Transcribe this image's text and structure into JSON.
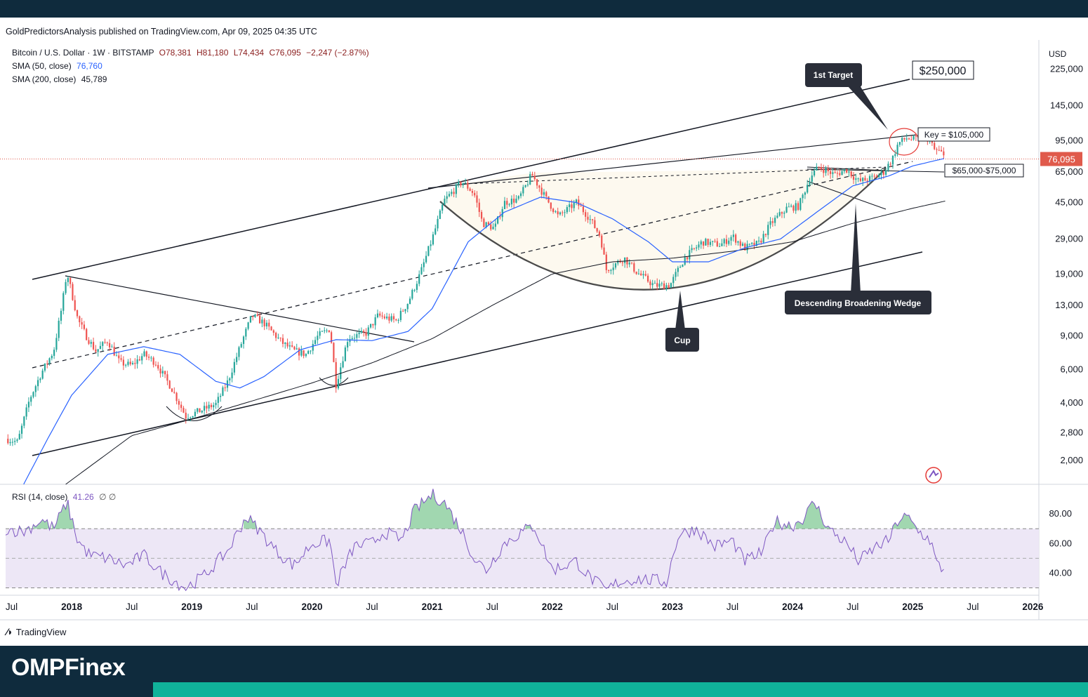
{
  "header": {
    "published_line": "GoldPredictorsAnalysis published on TradingView.com, Apr 09, 2025 04:35 UTC"
  },
  "legend": {
    "symbol_line": "Bitcoin / U.S. Dollar · 1W · BITSTAMP",
    "ohlc": {
      "o": "O78,381",
      "h": "H81,180",
      "l": "L74,434",
      "c": "C76,095",
      "chg": "−2,247 (−2.87%)"
    },
    "sma50_label": "SMA (50, close)",
    "sma50_value": "76,760",
    "sma200_label": "SMA (200, close)",
    "sma200_value": "45,789",
    "rsi_label": "RSI (14, close)",
    "rsi_value": "41.26",
    "rsi_extra": "∅  ∅"
  },
  "price_axis": {
    "currency": "USD",
    "last_price": "76,095",
    "last_price_color": "#e05a4b"
  },
  "annotations": {
    "first_target": "1st Target",
    "target_value": "$250,000",
    "key_level": "Key = $105,000",
    "support_zone": "$65,000-$75,000",
    "wedge": "Descending Broadening Wedge",
    "cup": "Cup"
  },
  "branding": {
    "tradingview": "TradingView",
    "omp_a": "OMPF",
    "omp_b": "inex"
  },
  "colors": {
    "up": "#26a69a",
    "down": "#ef5350",
    "sma50": "#2962ff",
    "sma200": "#131722",
    "rsi": "#7e57c2",
    "rsi_band": "#ede7f6",
    "brand_bg": "#0f2b3d",
    "brand_accent": "#10b29a"
  },
  "chart_data": {
    "type": "candlestick",
    "scale": "log",
    "timeframe": "1W",
    "ylim": [
      1500,
      320000
    ],
    "price_ticks": [
      2000,
      2800,
      4000,
      6000,
      9000,
      13000,
      19000,
      29000,
      45000,
      65000,
      95000,
      145000,
      225000
    ],
    "x_ticks": [
      "Jul",
      "2018",
      "Jul",
      "2019",
      "Jul",
      "2020",
      "Jul",
      "2021",
      "Jul",
      "2022",
      "Jul",
      "2023",
      "Jul",
      "2024",
      "Jul",
      "2025",
      "Jul",
      "2026"
    ],
    "x_tick_dates": [
      2017.5,
      2018,
      2018.5,
      2019,
      2019.5,
      2020,
      2020.5,
      2021,
      2021.5,
      2022,
      2022.5,
      2023,
      2023.5,
      2024,
      2024.5,
      2025,
      2025.5,
      2026
    ],
    "xlim": [
      2017.45,
      2026.05
    ],
    "price_anchors": [
      [
        2017.45,
        2600
      ],
      [
        2017.55,
        2500
      ],
      [
        2017.65,
        4200
      ],
      [
        2017.75,
        5800
      ],
      [
        2017.85,
        7500
      ],
      [
        2017.92,
        13000
      ],
      [
        2017.96,
        19500
      ],
      [
        2018.05,
        11000
      ],
      [
        2018.12,
        9000
      ],
      [
        2018.2,
        7500
      ],
      [
        2018.3,
        8500
      ],
      [
        2018.4,
        6500
      ],
      [
        2018.5,
        6300
      ],
      [
        2018.6,
        7200
      ],
      [
        2018.7,
        6500
      ],
      [
        2018.83,
        4800
      ],
      [
        2018.95,
        3400
      ],
      [
        2019.05,
        3600
      ],
      [
        2019.2,
        3950
      ],
      [
        2019.3,
        5200
      ],
      [
        2019.42,
        8500
      ],
      [
        2019.5,
        11500
      ],
      [
        2019.6,
        10500
      ],
      [
        2019.75,
        8300
      ],
      [
        2019.85,
        7500
      ],
      [
        2019.95,
        7200
      ],
      [
        2020.05,
        9000
      ],
      [
        2020.15,
        9800
      ],
      [
        2020.2,
        5000
      ],
      [
        2020.3,
        8800
      ],
      [
        2020.45,
        9300
      ],
      [
        2020.55,
        11500
      ],
      [
        2020.7,
        10800
      ],
      [
        2020.8,
        13500
      ],
      [
        2020.9,
        19000
      ],
      [
        2021.0,
        29000
      ],
      [
        2021.1,
        46000
      ],
      [
        2021.25,
        58000
      ],
      [
        2021.35,
        50000
      ],
      [
        2021.42,
        35000
      ],
      [
        2021.52,
        33000
      ],
      [
        2021.6,
        45000
      ],
      [
        2021.72,
        47000
      ],
      [
        2021.83,
        63000
      ],
      [
        2021.95,
        47000
      ],
      [
        2022.05,
        38000
      ],
      [
        2022.2,
        45000
      ],
      [
        2022.3,
        38000
      ],
      [
        2022.4,
        30000
      ],
      [
        2022.45,
        20000
      ],
      [
        2022.6,
        23000
      ],
      [
        2022.7,
        19500
      ],
      [
        2022.85,
        16500
      ],
      [
        2022.98,
        16600
      ],
      [
        2023.1,
        23000
      ],
      [
        2023.25,
        28000
      ],
      [
        2023.4,
        27000
      ],
      [
        2023.5,
        30000
      ],
      [
        2023.6,
        26000
      ],
      [
        2023.72,
        27500
      ],
      [
        2023.82,
        35000
      ],
      [
        2023.95,
        42000
      ],
      [
        2024.05,
        43000
      ],
      [
        2024.15,
        62000
      ],
      [
        2024.22,
        69000
      ],
      [
        2024.35,
        63000
      ],
      [
        2024.45,
        67000
      ],
      [
        2024.55,
        58000
      ],
      [
        2024.65,
        60000
      ],
      [
        2024.75,
        64000
      ],
      [
        2024.83,
        76000
      ],
      [
        2024.88,
        92000
      ],
      [
        2024.95,
        98000
      ],
      [
        2025.02,
        96000
      ],
      [
        2025.08,
        102000
      ],
      [
        2025.14,
        96000
      ],
      [
        2025.18,
        85000
      ],
      [
        2025.23,
        83000
      ],
      [
        2025.27,
        76095
      ]
    ],
    "sma50_anchors": [
      [
        2017.6,
        1500
      ],
      [
        2017.8,
        2600
      ],
      [
        2018.0,
        4400
      ],
      [
        2018.3,
        7200
      ],
      [
        2018.6,
        7900
      ],
      [
        2018.9,
        7200
      ],
      [
        2019.2,
        5200
      ],
      [
        2019.4,
        4800
      ],
      [
        2019.6,
        5500
      ],
      [
        2019.9,
        7600
      ],
      [
        2020.2,
        8600
      ],
      [
        2020.5,
        8500
      ],
      [
        2020.8,
        9500
      ],
      [
        2021.0,
        12500
      ],
      [
        2021.3,
        28000
      ],
      [
        2021.6,
        40000
      ],
      [
        2021.9,
        48000
      ],
      [
        2022.2,
        45000
      ],
      [
        2022.5,
        37000
      ],
      [
        2022.8,
        28000
      ],
      [
        2023.0,
        22000
      ],
      [
        2023.3,
        22000
      ],
      [
        2023.6,
        26000
      ],
      [
        2023.9,
        29000
      ],
      [
        2024.2,
        40000
      ],
      [
        2024.5,
        55000
      ],
      [
        2024.8,
        62000
      ],
      [
        2025.0,
        70000
      ],
      [
        2025.27,
        76760
      ]
    ],
    "sma200_anchors": [
      [
        2017.95,
        1500
      ],
      [
        2018.5,
        2700
      ],
      [
        2019.0,
        3300
      ],
      [
        2019.5,
        4100
      ],
      [
        2020.0,
        5100
      ],
      [
        2020.5,
        6500
      ],
      [
        2021.0,
        8700
      ],
      [
        2021.5,
        13000
      ],
      [
        2022.0,
        19000
      ],
      [
        2022.5,
        22000
      ],
      [
        2023.0,
        23000
      ],
      [
        2023.5,
        25000
      ],
      [
        2024.0,
        28000
      ],
      [
        2024.5,
        35000
      ],
      [
        2025.0,
        42000
      ],
      [
        2025.27,
        45789
      ]
    ],
    "rsi": {
      "ylim": [
        25,
        100
      ],
      "ticks": [
        40,
        60,
        80
      ],
      "upper": 70,
      "middle": 50,
      "lower": 30,
      "anchors": [
        [
          2017.45,
          70
        ],
        [
          2017.6,
          68
        ],
        [
          2017.75,
          76
        ],
        [
          2017.85,
          70
        ],
        [
          2017.96,
          88
        ],
        [
          2018.05,
          62
        ],
        [
          2018.15,
          52
        ],
        [
          2018.3,
          50
        ],
        [
          2018.45,
          45
        ],
        [
          2018.6,
          52
        ],
        [
          2018.75,
          40
        ],
        [
          2018.95,
          30
        ],
        [
          2019.1,
          38
        ],
        [
          2019.3,
          55
        ],
        [
          2019.45,
          78
        ],
        [
          2019.55,
          70
        ],
        [
          2019.7,
          55
        ],
        [
          2019.85,
          45
        ],
        [
          2020.0,
          60
        ],
        [
          2020.15,
          62
        ],
        [
          2020.2,
          32
        ],
        [
          2020.35,
          58
        ],
        [
          2020.5,
          60
        ],
        [
          2020.6,
          68
        ],
        [
          2020.75,
          62
        ],
        [
          2020.85,
          82
        ],
        [
          2021.0,
          93
        ],
        [
          2021.1,
          88
        ],
        [
          2021.25,
          68
        ],
        [
          2021.35,
          50
        ],
        [
          2021.45,
          42
        ],
        [
          2021.6,
          60
        ],
        [
          2021.75,
          68
        ],
        [
          2021.85,
          72
        ],
        [
          2022.0,
          42
        ],
        [
          2022.2,
          48
        ],
        [
          2022.3,
          38
        ],
        [
          2022.45,
          28
        ],
        [
          2022.55,
          34
        ],
        [
          2022.7,
          36
        ],
        [
          2022.85,
          35
        ],
        [
          2022.95,
          34
        ],
        [
          2023.05,
          66
        ],
        [
          2023.2,
          70
        ],
        [
          2023.35,
          58
        ],
        [
          2023.5,
          62
        ],
        [
          2023.6,
          48
        ],
        [
          2023.75,
          54
        ],
        [
          2023.85,
          75
        ],
        [
          2024.0,
          72
        ],
        [
          2024.1,
          78
        ],
        [
          2024.18,
          88
        ],
        [
          2024.3,
          70
        ],
        [
          2024.45,
          60
        ],
        [
          2024.55,
          48
        ],
        [
          2024.7,
          58
        ],
        [
          2024.8,
          62
        ],
        [
          2024.88,
          76
        ],
        [
          2024.95,
          78
        ],
        [
          2025.05,
          68
        ],
        [
          2025.15,
          62
        ],
        [
          2025.2,
          46
        ],
        [
          2025.27,
          41.26
        ]
      ]
    }
  }
}
